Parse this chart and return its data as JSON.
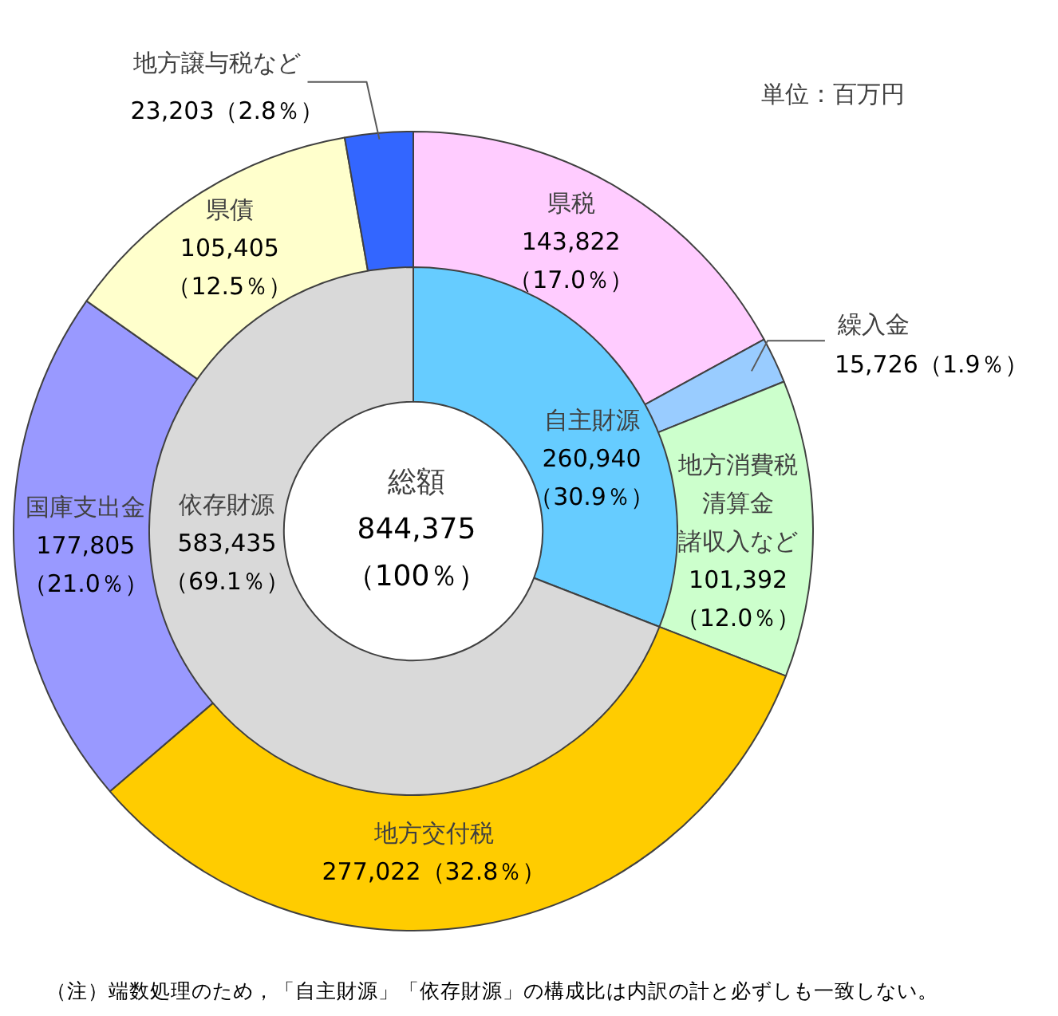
{
  "chart_data": [
    {
      "type": "donut",
      "categories": [
        "県税",
        "繰入金",
        "地方消費税清算金諸収入など",
        "地方交付税",
        "国庫支出金",
        "県債",
        "地方譲与税など"
      ],
      "values": [
        143822,
        15726,
        101392,
        277022,
        177805,
        105405,
        23203
      ],
      "colors": [
        "#ffccff",
        "#99ccff",
        "#ccffcc",
        "#ffcc00",
        "#9999ff",
        "#ffffcc",
        "#3366ff"
      ],
      "value_labels": [
        "143,822\n（17.0％）",
        "15,726（1.9％）",
        "101,392\n（12.0％）",
        "277,022（32.8％）",
        "177,805\n（21.0％）",
        "105,405\n（12.5％）",
        "23,203（2.8％）"
      ],
      "annotations": [
        "単位：百万円",
        "（注）端数処理のため，「自主財源」「依存財源」の構成比は内訳の計と必ずしも一致しない。"
      ]
    },
    {
      "type": "donut",
      "categories": [
        "自主財源",
        "依存財源"
      ],
      "values": [
        260940,
        583435
      ],
      "colors": [
        "#66ccff",
        "#d9d9d9"
      ],
      "value_labels": [
        "260,940\n（30.9％）",
        "583,435\n（69.1％）"
      ],
      "annotations": [
        "総額\n844,375\n（100％）"
      ]
    }
  ]
}
